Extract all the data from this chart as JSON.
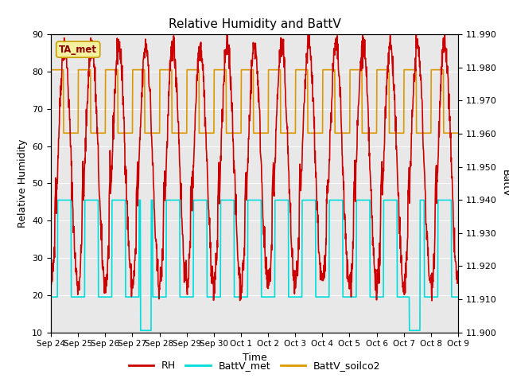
{
  "title": "Relative Humidity and BattV",
  "ylabel_left": "Relative Humidity",
  "ylabel_right": "BattV",
  "xlabel": "Time",
  "ylim_left": [
    10,
    90
  ],
  "ylim_right": [
    11.9,
    11.99
  ],
  "figure_facecolor": "#ffffff",
  "plot_bg_color": "#e8e8e8",
  "annotation_text": "TA_met",
  "annotation_bg": "#f5f0a0",
  "annotation_border": "#c8a000",
  "xtick_labels": [
    "Sep 24",
    "Sep 25",
    "Sep 26",
    "Sep 27",
    "Sep 28",
    "Sep 29",
    "Sep 30",
    "Oct 1",
    "Oct 2",
    "Oct 3",
    "Oct 4",
    "Oct 5",
    "Oct 6",
    "Oct 7",
    "Oct 8",
    "Oct 9"
  ],
  "ytick_left": [
    10,
    20,
    30,
    40,
    50,
    60,
    70,
    80,
    90
  ],
  "ytick_right": [
    11.9,
    11.91,
    11.92,
    11.93,
    11.94,
    11.95,
    11.96,
    11.97,
    11.98,
    11.99
  ],
  "rh_color": "#cc0000",
  "battv_met_color": "#00dddd",
  "battv_soilco2_color": "#dd9900",
  "legend_labels": [
    "RH",
    "BattV_met",
    "BattV_soilco2"
  ],
  "rh_lw": 1.2,
  "battv_lw": 1.2,
  "n_days": 15
}
